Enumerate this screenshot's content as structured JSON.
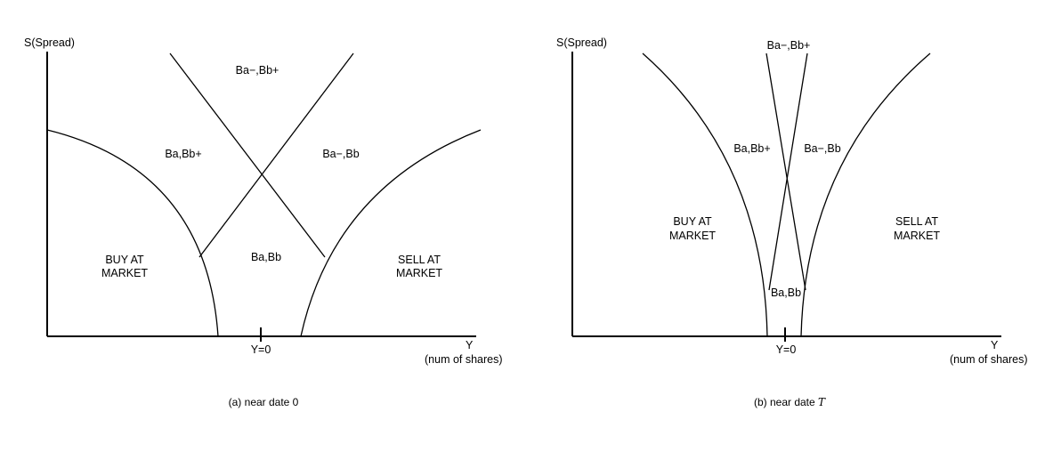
{
  "panel_a": {
    "y_axis_label": "S(Spread)",
    "x_axis_label": "Y",
    "x_axis_unit": "(num of shares)",
    "origin_label": "Y=0",
    "regions": {
      "top": "Ba−,Bb+",
      "left": "Ba,Bb+",
      "right": "Ba−,Bb",
      "center": "Ba,Bb",
      "buy_line1": "BUY AT",
      "buy_line2": "MARKET",
      "sell_line1": "SELL AT",
      "sell_line2": "MARKET"
    },
    "caption": "(a) near date 0"
  },
  "panel_b": {
    "y_axis_label": "S(Spread)",
    "x_axis_label": "Y",
    "x_axis_unit": "(num of shares)",
    "origin_label": "Y=0",
    "regions": {
      "top": "Ba−,Bb+",
      "left": "Ba,Bb+",
      "right": "Ba−,Bb",
      "center": "Ba,Bb",
      "buy_line1": "BUY AT",
      "buy_line2": "MARKET",
      "sell_line1": "SELL AT",
      "sell_line2": "MARKET"
    },
    "caption_prefix": "(b) near date ",
    "caption_symbol": "T"
  }
}
